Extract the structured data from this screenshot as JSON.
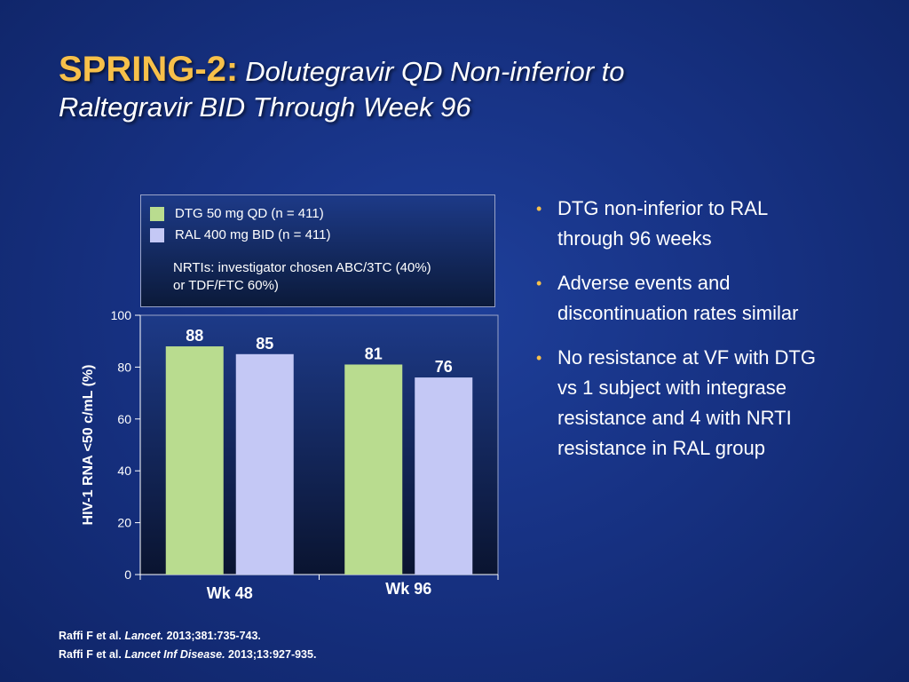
{
  "title": {
    "prefix": "SPRING-2:",
    "rest": "Dolutegravir QD Non-inferior to",
    "line2": "Raltegravir BID Through Week 96"
  },
  "legend": {
    "items": [
      {
        "label": "DTG 50 mg QD (n = 411)",
        "color": "#b9dc8f"
      },
      {
        "label": "RAL 400 mg BID (n = 411)",
        "color": "#c4c8f5"
      }
    ],
    "note_line1": "NRTIs: investigator chosen ABC/3TC (40%)",
    "note_line2": "or TDF/FTC 60%)"
  },
  "chart_data": {
    "type": "bar",
    "categories": [
      "Wk 48",
      "Wk 96"
    ],
    "series": [
      {
        "name": "DTG 50 mg QD (n = 411)",
        "values": [
          88,
          81
        ],
        "data_labels": [
          "88",
          "81"
        ],
        "color": "#b9dc8f"
      },
      {
        "name": "RAL 400 mg BID (n = 411)",
        "values": [
          85,
          76
        ],
        "data_labels": [
          "85",
          "76"
        ],
        "color": "#c4c8f5"
      }
    ],
    "ylabel": "HIV-1 RNA <50 c/mL (%)",
    "xlabel": "",
    "ylim": [
      0,
      100
    ],
    "yticks": [
      0,
      20,
      40,
      60,
      80,
      100
    ],
    "grid": false,
    "legend_position": "top"
  },
  "bullets": [
    {
      "text_line1": "DTG non-inferior to RAL",
      "text_line2": "through 96 weeks"
    },
    {
      "text_line1": "Adverse events and",
      "text_line2": "discontinuation rates similar"
    },
    {
      "text_line1": "No resistance at VF with DTG",
      "text_line2": "vs 1 subject with integrase",
      "text_line3": "resistance and 4 with NRTI",
      "text_line4": "resistance in RAL group"
    }
  ],
  "bullet_glyph": "•",
  "references": [
    {
      "authors": "Raffi F et al. ",
      "journal": "Lancet.",
      "details": " 2013;381:735-743."
    },
    {
      "authors": "Raffi F et al. ",
      "journal": "Lancet Inf Disease.",
      "details": " 2013;13:927-935."
    }
  ]
}
